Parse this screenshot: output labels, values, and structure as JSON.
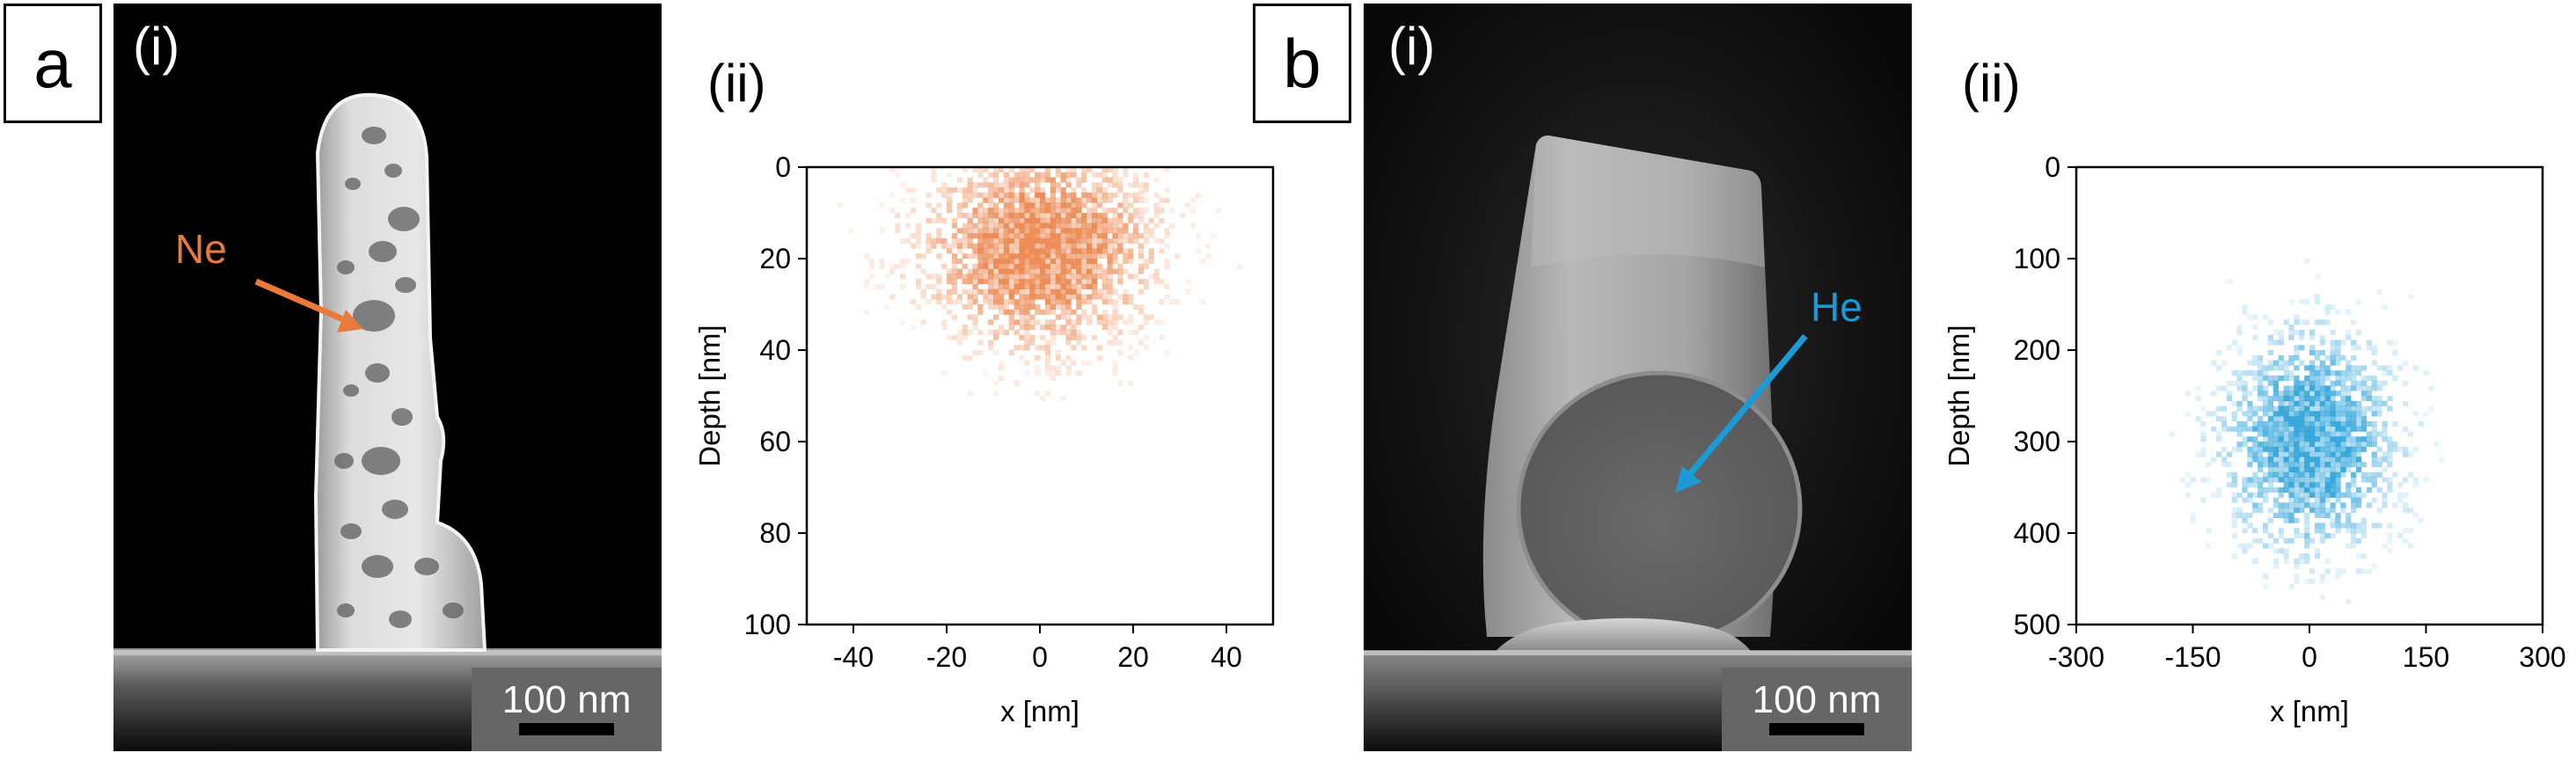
{
  "figure": {
    "panel_a": {
      "label": "a",
      "sub_i": "(i)",
      "sub_ii": "(ii)",
      "micrograph": {
        "ion_label": "Ne",
        "ion_color": "#e97a3c",
        "scalebar": "100 nm"
      },
      "chart": {
        "xlabel": "x [nm]",
        "ylabel": "Depth [nm]",
        "xticks": [
          "-40",
          "-20",
          "0",
          "20",
          "40"
        ],
        "yticks": [
          "0",
          "20",
          "40",
          "60",
          "80",
          "100"
        ]
      }
    },
    "panel_b": {
      "label": "b",
      "sub_i": "(i)",
      "sub_ii": "(ii)",
      "micrograph": {
        "ion_label": "He",
        "ion_color": "#1a9ad6",
        "scalebar": "100 nm"
      },
      "chart": {
        "xlabel": "x [nm]",
        "ylabel": "Depth [nm]",
        "xticks": [
          "-300",
          "-150",
          "0",
          "150",
          "300"
        ],
        "yticks": [
          "0",
          "100",
          "200",
          "300",
          "400",
          "500"
        ]
      }
    }
  },
  "chart_data": [
    {
      "type": "heatmap",
      "title": "",
      "xlabel": "x [nm]",
      "ylabel": "Depth [nm]",
      "xlim": [
        -50,
        50
      ],
      "ylim": [
        100,
        0
      ],
      "y_axis_inverted": true,
      "color": "#e97a3c",
      "distribution": {
        "x_center": 0,
        "depth_center": 18,
        "x_spread_sd": 16,
        "depth_spread_sd": 14
      },
      "grid": false
    },
    {
      "type": "heatmap",
      "title": "",
      "xlabel": "x [nm]",
      "ylabel": "Depth [nm]",
      "xlim": [
        -300,
        300
      ],
      "ylim": [
        500,
        0
      ],
      "y_axis_inverted": true,
      "color": "#1a9ad6",
      "distribution": {
        "x_center": 0,
        "depth_center": 300,
        "x_spread_sd": 70,
        "depth_spread_sd": 75
      },
      "grid": false
    }
  ]
}
